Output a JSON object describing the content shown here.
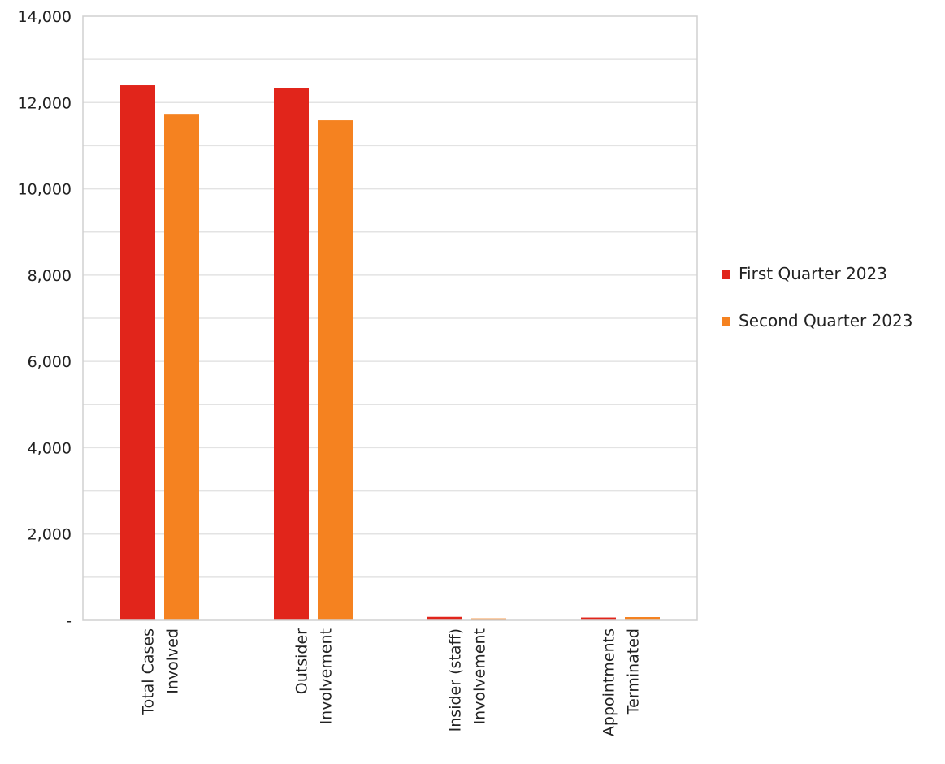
{
  "chart_data": {
    "type": "bar",
    "title": "",
    "xlabel": "",
    "ylabel": "",
    "ylim": [
      0,
      14000
    ],
    "yticks": [
      0,
      2000,
      4000,
      6000,
      8000,
      10000,
      12000,
      14000
    ],
    "ytick_labels": [
      "-",
      "2,000",
      "4,000",
      "6,000",
      "8,000",
      "10,000",
      "12,000",
      "14,000"
    ],
    "categories": [
      [
        "Total Cases",
        "Involved"
      ],
      [
        "Outsider",
        "Involvement"
      ],
      [
        "Insider (staff)",
        "Involvement"
      ],
      [
        "Appointments",
        "Terminated"
      ]
    ],
    "series": [
      {
        "name": "First Quarter 2023",
        "color": "#E1251B",
        "values": [
          12400,
          12340,
          80,
          65
        ]
      },
      {
        "name": "Second Quarter 2023",
        "color": "#F58220",
        "values": [
          11720,
          11590,
          45,
          75
        ]
      }
    ],
    "grid": true,
    "legend_position": "right"
  }
}
